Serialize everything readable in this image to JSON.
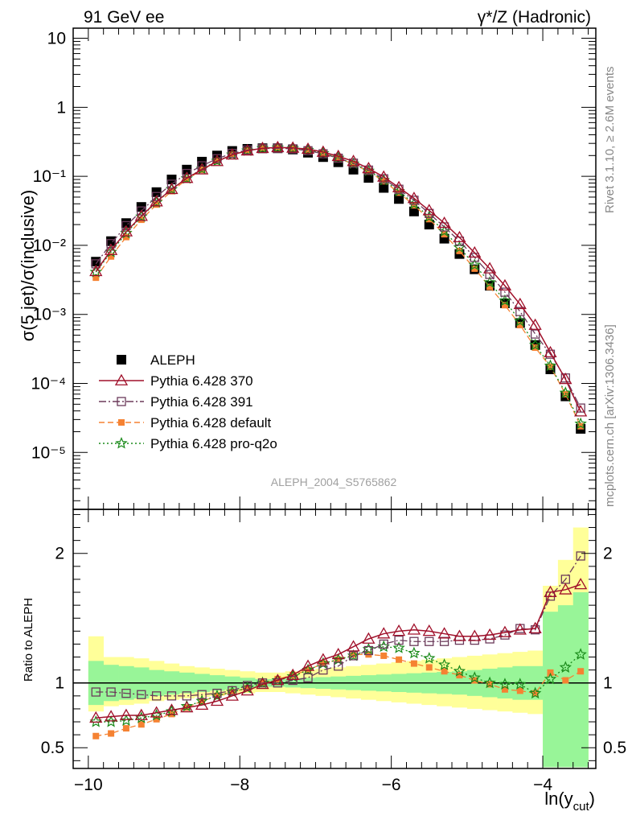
{
  "header": {
    "left_label": "91 GeV ee",
    "right_label": "γ*/Z (Hadronic)"
  },
  "side_labels": {
    "rivet": "Rivet 3.1.10, ≥ 2.6M events",
    "mcplots": "mcplots.cern.ch [arXiv:1306.3436]"
  },
  "watermark": "ALEPH_2004_S5765862",
  "colors": {
    "data": "#000000",
    "p370": "#a0102a",
    "p391": "#6b3a5a",
    "pdefault": "#f58232",
    "pq2o": "#1a8a1a",
    "band_inner": "#98f598",
    "band_outer": "#ffff99"
  },
  "chart_data": [
    {
      "type": "line",
      "scale_y": "log",
      "ylabel": "σ(5 jet)/σ(inclusive)",
      "xlim": [
        -10.2,
        -3.3
      ],
      "ylim": [
        1.5e-06,
        14
      ],
      "y_tick_labels": [
        "10⁻⁵",
        "10⁻⁴",
        "10⁻³",
        "10⁻²",
        "10⁻¹",
        "1",
        "10"
      ],
      "legend_position": "lower-left",
      "x": [
        -9.9,
        -9.7,
        -9.5,
        -9.3,
        -9.1,
        -8.9,
        -8.7,
        -8.5,
        -8.3,
        -8.1,
        -7.9,
        -7.7,
        -7.5,
        -7.3,
        -7.1,
        -6.9,
        -6.7,
        -6.5,
        -6.3,
        -6.1,
        -5.9,
        -5.7,
        -5.5,
        -5.3,
        -5.1,
        -4.9,
        -4.7,
        -4.5,
        -4.3,
        -4.1,
        -3.9,
        -3.7,
        -3.5
      ],
      "series": [
        {
          "name": "ALEPH",
          "key": "data",
          "marker": "square-filled",
          "values": [
            0.0058,
            0.0115,
            0.021,
            0.036,
            0.059,
            0.09,
            0.125,
            0.163,
            0.2,
            0.233,
            0.25,
            0.255,
            0.255,
            0.245,
            0.22,
            0.19,
            0.16,
            0.125,
            0.095,
            0.068,
            0.047,
            0.031,
            0.02,
            0.0125,
            0.0075,
            0.0045,
            0.0026,
            0.00145,
            0.00075,
            0.00036,
            0.00016,
            6.5e-05,
            2.2e-05
          ]
        },
        {
          "name": "Pythia 6.428 370",
          "key": "p370",
          "marker": "triangle-open",
          "dash": "",
          "values": [
            0.0042,
            0.0085,
            0.0158,
            0.0265,
            0.043,
            0.065,
            0.094,
            0.125,
            0.165,
            0.205,
            0.235,
            0.255,
            0.262,
            0.258,
            0.248,
            0.225,
            0.195,
            0.165,
            0.13,
            0.098,
            0.069,
            0.048,
            0.032,
            0.021,
            0.013,
            0.0078,
            0.0046,
            0.0026,
            0.0014,
            0.0007,
            0.00028,
            0.000115,
            3.9e-05
          ]
        },
        {
          "name": "Pythia 6.428 391",
          "key": "p391",
          "marker": "square-open",
          "dash": "9,3,2,3",
          "values": [
            0.0054,
            0.0106,
            0.0193,
            0.0315,
            0.051,
            0.077,
            0.11,
            0.142,
            0.18,
            0.215,
            0.24,
            0.252,
            0.255,
            0.25,
            0.235,
            0.212,
            0.183,
            0.155,
            0.123,
            0.092,
            0.065,
            0.045,
            0.029,
            0.0185,
            0.0115,
            0.0067,
            0.0038,
            0.0021,
            0.0011,
            0.00052,
            0.000265,
            0.00012,
            4.4e-05
          ]
        },
        {
          "name": "Pythia 6.428 default",
          "key": "pdefault",
          "marker": "square-filled",
          "dash": "7,4",
          "values": [
            0.0034,
            0.0069,
            0.0132,
            0.0235,
            0.039,
            0.061,
            0.09,
            0.124,
            0.165,
            0.205,
            0.235,
            0.255,
            0.262,
            0.255,
            0.24,
            0.215,
            0.185,
            0.15,
            0.117,
            0.085,
            0.058,
            0.038,
            0.024,
            0.0145,
            0.0083,
            0.0046,
            0.0025,
            0.00136,
            0.0007,
            0.00033,
            0.000175,
            7e-05,
            2.4e-05
          ]
        },
        {
          "name": "Pythia 6.428 pro-q2o",
          "key": "pq2o",
          "marker": "star-open",
          "dash": "2,3",
          "values": [
            0.0041,
            0.008,
            0.015,
            0.026,
            0.042,
            0.065,
            0.093,
            0.128,
            0.167,
            0.206,
            0.235,
            0.255,
            0.26,
            0.254,
            0.24,
            0.215,
            0.185,
            0.152,
            0.12,
            0.088,
            0.061,
            0.04,
            0.026,
            0.016,
            0.0093,
            0.0052,
            0.0029,
            0.00158,
            0.0008,
            0.00036,
            0.00018,
            7.3e-05,
            2.6e-05
          ]
        }
      ]
    },
    {
      "type": "line",
      "ylabel": "Ratio to ALEPH",
      "xlabel": "ln(y_cut)",
      "xlim": [
        -10.2,
        -3.3
      ],
      "ylim": [
        0.34,
        2.34
      ],
      "x_ticks": [
        -10,
        -8,
        -6,
        -4
      ],
      "x_tick_labels": [
        "−10",
        "−8",
        "−6",
        "−4"
      ],
      "y_ticks": [
        0.5,
        1,
        2
      ],
      "y_tick_labels": [
        "0.5",
        "1",
        "2"
      ],
      "band_inner": [
        [
          0.83,
          1.17
        ],
        [
          0.86,
          1.14
        ],
        [
          0.87,
          1.13
        ],
        [
          0.88,
          1.12
        ],
        [
          0.9,
          1.1
        ],
        [
          0.91,
          1.09
        ],
        [
          0.92,
          1.08
        ],
        [
          0.93,
          1.07
        ],
        [
          0.94,
          1.06
        ],
        [
          0.95,
          1.05
        ],
        [
          0.96,
          1.04
        ],
        [
          0.97,
          1.03
        ],
        [
          0.97,
          1.03
        ],
        [
          0.965,
          1.035
        ],
        [
          0.96,
          1.04
        ],
        [
          0.955,
          1.045
        ],
        [
          0.95,
          1.05
        ],
        [
          0.945,
          1.055
        ],
        [
          0.94,
          1.06
        ],
        [
          0.935,
          1.065
        ],
        [
          0.93,
          1.07
        ],
        [
          0.925,
          1.075
        ],
        [
          0.92,
          1.08
        ],
        [
          0.915,
          1.085
        ],
        [
          0.91,
          1.09
        ],
        [
          0.9,
          1.1
        ],
        [
          0.89,
          1.11
        ],
        [
          0.88,
          1.12
        ],
        [
          0.87,
          1.13
        ],
        [
          0.87,
          1.13
        ],
        [
          0.35,
          1.55
        ],
        [
          0.35,
          1.6
        ],
        [
          0.35,
          1.7
        ]
      ],
      "band_outer": [
        [
          0.78,
          1.36
        ],
        [
          0.82,
          1.2
        ],
        [
          0.83,
          1.2
        ],
        [
          0.84,
          1.19
        ],
        [
          0.86,
          1.17
        ],
        [
          0.87,
          1.15
        ],
        [
          0.88,
          1.13
        ],
        [
          0.89,
          1.12
        ],
        [
          0.9,
          1.11
        ],
        [
          0.91,
          1.1
        ],
        [
          0.92,
          1.09
        ],
        [
          0.93,
          1.08
        ],
        [
          0.93,
          1.08
        ],
        [
          0.92,
          1.09
        ],
        [
          0.91,
          1.1
        ],
        [
          0.9,
          1.11
        ],
        [
          0.89,
          1.12
        ],
        [
          0.88,
          1.13
        ],
        [
          0.87,
          1.14
        ],
        [
          0.86,
          1.15
        ],
        [
          0.85,
          1.16
        ],
        [
          0.84,
          1.17
        ],
        [
          0.83,
          1.18
        ],
        [
          0.82,
          1.19
        ],
        [
          0.81,
          1.2
        ],
        [
          0.8,
          1.21
        ],
        [
          0.79,
          1.22
        ],
        [
          0.78,
          1.23
        ],
        [
          0.77,
          1.24
        ],
        [
          0.76,
          1.25
        ],
        [
          0.35,
          1.75
        ],
        [
          0.35,
          1.95
        ],
        [
          0.35,
          2.2
        ]
      ],
      "series": [
        {
          "key": "p370",
          "marker": "triangle-open",
          "dash": "",
          "values": [
            0.73,
            0.74,
            0.75,
            0.75,
            0.77,
            0.79,
            0.81,
            0.83,
            0.86,
            0.9,
            0.94,
            0.99,
            1.02,
            1.06,
            1.13,
            1.18,
            1.22,
            1.28,
            1.34,
            1.38,
            1.4,
            1.41,
            1.4,
            1.38,
            1.36,
            1.36,
            1.37,
            1.39,
            1.41,
            1.42,
            1.7,
            1.72,
            1.76
          ]
        },
        {
          "key": "p391",
          "marker": "square-open",
          "dash": "9,3,2,3",
          "values": [
            0.93,
            0.93,
            0.92,
            0.91,
            0.9,
            0.9,
            0.9,
            0.91,
            0.92,
            0.94,
            0.98,
            1.0,
            1.0,
            1.02,
            1.04,
            1.1,
            1.13,
            1.21,
            1.25,
            1.3,
            1.33,
            1.32,
            1.32,
            1.32,
            1.33,
            1.33,
            1.34,
            1.37,
            1.42,
            1.41,
            1.67,
            1.8,
            1.98
          ]
        },
        {
          "key": "pdefault",
          "marker": "square-filled",
          "dash": "7,4",
          "values": [
            0.59,
            0.61,
            0.65,
            0.68,
            0.72,
            0.76,
            0.81,
            0.86,
            0.9,
            0.93,
            0.96,
            1.0,
            1.03,
            1.06,
            1.1,
            1.15,
            1.18,
            1.22,
            1.22,
            1.21,
            1.18,
            1.15,
            1.12,
            1.09,
            1.06,
            1.02,
            0.99,
            0.95,
            0.94,
            0.92,
            1.08,
            1.02,
            1.09
          ]
        },
        {
          "key": "pq2o",
          "marker": "star-open",
          "dash": "2,3",
          "values": [
            0.7,
            0.7,
            0.71,
            0.73,
            0.75,
            0.78,
            0.82,
            0.86,
            0.9,
            0.93,
            0.96,
            1.0,
            1.02,
            1.05,
            1.1,
            1.15,
            1.18,
            1.21,
            1.26,
            1.28,
            1.27,
            1.23,
            1.19,
            1.14,
            1.09,
            1.04,
            1.0,
            0.99,
            0.99,
            0.92,
            1.03,
            1.12,
            1.22
          ]
        }
      ]
    }
  ]
}
